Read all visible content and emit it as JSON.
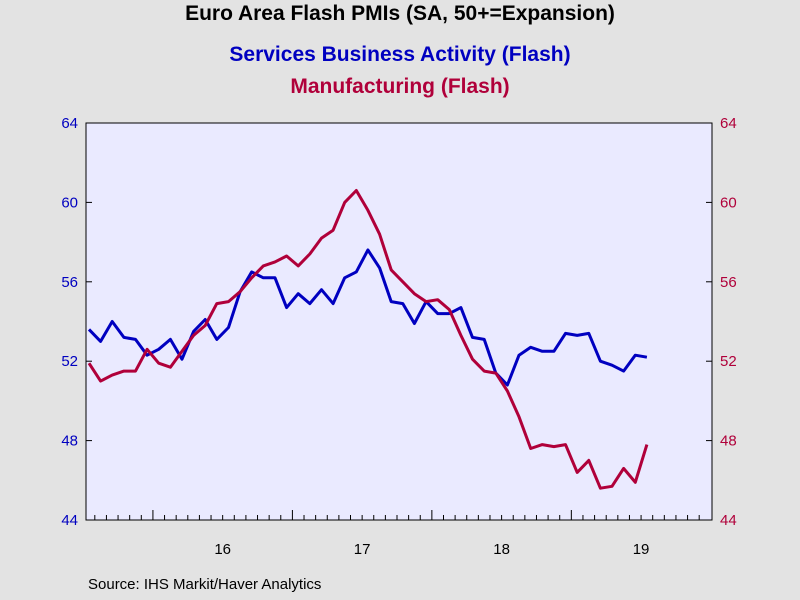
{
  "header": {
    "title": "Euro Area Flash PMIs (SA, 50+=Expansion)",
    "series1_title": "Services Business Activity (Flash)",
    "series2_title": "Manufacturing (Flash)"
  },
  "footer": {
    "source": "Source:  IHS Markit/Haver Analytics"
  },
  "colors": {
    "services": "#0000c0",
    "manufacturing": "#b0003a",
    "plot_bg": "#eaeaff",
    "page_bg": "#e3e3e3"
  },
  "chart_data": {
    "type": "line",
    "x_start": "2015-07",
    "x_end": "2019-12",
    "x_tick_labels": [
      "16",
      "17",
      "18",
      "19"
    ],
    "ylim_left": [
      44,
      64
    ],
    "ylim_right": [
      44,
      64
    ],
    "y_ticks_left": [
      "44",
      "48",
      "52",
      "56",
      "60",
      "64"
    ],
    "y_ticks_right": [
      "44",
      "48",
      "52",
      "56",
      "60",
      "64"
    ],
    "grid": false,
    "series": [
      {
        "axis": "left",
        "values": [
          53.6,
          53.0,
          54.0,
          53.2,
          53.1,
          52.3,
          52.6,
          53.1,
          52.1,
          53.5,
          54.1,
          53.1,
          53.7,
          55.5,
          56.5,
          56.2,
          56.2,
          54.7,
          55.4,
          54.9,
          55.6,
          54.9,
          56.2,
          56.5,
          57.6,
          56.7,
          55.0,
          54.9,
          53.9,
          55.0,
          54.4,
          54.4,
          54.7,
          53.2,
          53.1,
          51.4,
          50.8,
          52.3,
          52.7,
          52.5,
          52.5,
          53.4,
          53.3,
          53.4,
          52.0,
          51.8,
          51.5,
          52.3,
          52.2
        ],
        "start": "2015-07"
      },
      {
        "axis": "right",
        "values": [
          51.9,
          51.0,
          51.3,
          51.5,
          51.5,
          52.6,
          51.9,
          51.7,
          52.5,
          53.3,
          53.8,
          54.9,
          55.0,
          55.5,
          56.2,
          56.8,
          57.0,
          57.3,
          56.8,
          57.4,
          58.2,
          58.6,
          60.0,
          60.6,
          59.6,
          58.4,
          56.6,
          56.0,
          55.4,
          55.0,
          55.1,
          54.6,
          53.3,
          52.1,
          51.5,
          51.4,
          50.5,
          49.2,
          47.6,
          47.8,
          47.7,
          47.8,
          46.4,
          47.0,
          45.6,
          45.7,
          46.6,
          45.9,
          47.8
        ],
        "start": "2015-07"
      }
    ]
  }
}
